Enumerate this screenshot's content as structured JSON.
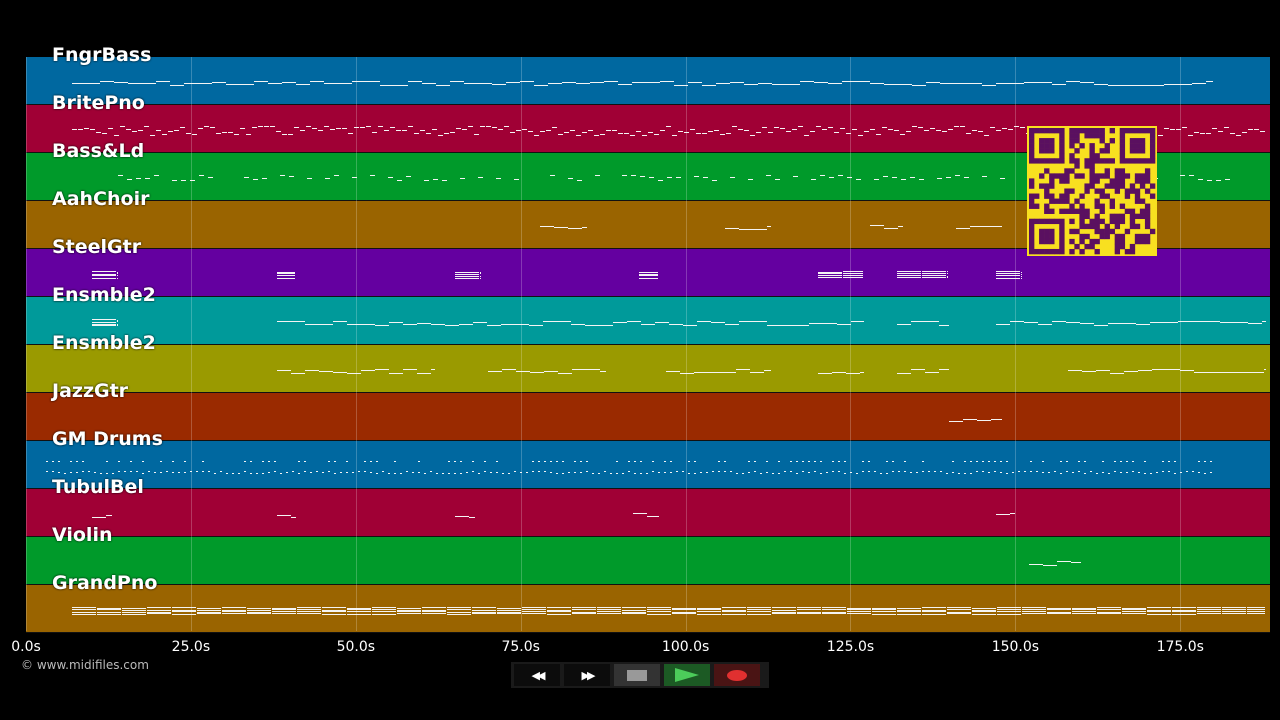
{
  "duration_seconds": 188.6,
  "tracks": [
    {
      "name": "FngrBass",
      "color": "#0068a0",
      "notes": [
        [
          7,
          180,
          "line"
        ]
      ]
    },
    {
      "name": "BritePno",
      "color": "#a00035",
      "notes": [
        [
          7,
          188,
          "dense"
        ]
      ]
    },
    {
      "name": "Bass&Ld",
      "color": "#009a2a",
      "notes": [
        [
          14,
          185,
          "sparse"
        ]
      ]
    },
    {
      "name": "AahChoir",
      "color": "#9a6400",
      "notes": [
        [
          78,
          85,
          "line"
        ],
        [
          106,
          113,
          "line"
        ],
        [
          128,
          133,
          "line"
        ],
        [
          141,
          148,
          "line"
        ]
      ]
    },
    {
      "name": "SteelGtr",
      "color": "#6400a0",
      "notes": [
        [
          10,
          14,
          "block"
        ],
        [
          38,
          41,
          "block"
        ],
        [
          65,
          69,
          "block"
        ],
        [
          93,
          96,
          "block"
        ],
        [
          120,
          127,
          "block"
        ],
        [
          132,
          140,
          "block"
        ],
        [
          147,
          151,
          "block"
        ]
      ]
    },
    {
      "name": "Ensmble2",
      "color": "#009a9a",
      "notes": [
        [
          10,
          14,
          "block"
        ],
        [
          38,
          127,
          "line"
        ],
        [
          132,
          140,
          "line"
        ],
        [
          147,
          188,
          "line"
        ]
      ]
    },
    {
      "name": "Ensmble2",
      "color": "#9a9a00",
      "notes": [
        [
          38,
          62,
          "line"
        ],
        [
          70,
          88,
          "line"
        ],
        [
          97,
          113,
          "line"
        ],
        [
          120,
          127,
          "line"
        ],
        [
          132,
          140,
          "line"
        ],
        [
          158,
          188,
          "line"
        ]
      ]
    },
    {
      "name": "JazzGtr",
      "color": "#9a2a00",
      "notes": [
        [
          140,
          148,
          "line"
        ]
      ]
    },
    {
      "name": "GM Drums",
      "color": "#0068a0",
      "notes": [
        [
          3,
          180,
          "dots"
        ]
      ]
    },
    {
      "name": "TubulBel",
      "color": "#a00035",
      "notes": [
        [
          10,
          13,
          "line"
        ],
        [
          38,
          41,
          "line"
        ],
        [
          65,
          68,
          "line"
        ],
        [
          92,
          96,
          "line"
        ],
        [
          147,
          150,
          "line"
        ]
      ]
    },
    {
      "name": "Violin",
      "color": "#009a2a",
      "notes": [
        [
          152,
          160,
          "line"
        ]
      ]
    },
    {
      "name": "GrandPno",
      "color": "#9a6400",
      "notes": [
        [
          7,
          188,
          "block"
        ]
      ]
    }
  ],
  "time_ticks": [
    "0.0s",
    "25.0s",
    "50.0s",
    "75.0s",
    "100.0s",
    "125.0s",
    "150.0s",
    "175.0s"
  ],
  "tick_values": [
    0,
    25,
    50,
    75,
    100,
    125,
    150,
    175
  ],
  "copyright": "© www.midifiles.com",
  "controls": {
    "rewind": "◀◀",
    "forward": "▶▶",
    "stop_icon": "stop",
    "play_icon": "play",
    "record_icon": "record"
  },
  "qr": {
    "fg": "#5a1060",
    "bg": "#f8e020"
  }
}
